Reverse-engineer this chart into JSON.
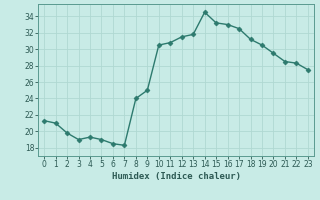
{
  "x": [
    0,
    1,
    2,
    3,
    4,
    5,
    6,
    7,
    8,
    9,
    10,
    11,
    12,
    13,
    14,
    15,
    16,
    17,
    18,
    19,
    20,
    21,
    22,
    23
  ],
  "y": [
    21.3,
    21.0,
    19.8,
    19.0,
    19.3,
    19.0,
    18.5,
    18.3,
    24.0,
    25.0,
    30.5,
    30.8,
    31.5,
    31.8,
    34.5,
    33.2,
    33.0,
    32.5,
    31.2,
    30.5,
    29.5,
    28.5,
    28.3,
    27.5
  ],
  "line_color": "#2d7a6e",
  "marker": "D",
  "markersize": 2.5,
  "linewidth": 1.0,
  "bg_color": "#c8ebe6",
  "grid_color": "#b0d8d2",
  "xlabel": "Humidex (Indice chaleur)",
  "ylim": [
    17,
    35.5
  ],
  "yticks": [
    18,
    20,
    22,
    24,
    26,
    28,
    30,
    32,
    34
  ],
  "xlim": [
    -0.5,
    23.5
  ],
  "xticks": [
    0,
    1,
    2,
    3,
    4,
    5,
    6,
    7,
    8,
    9,
    10,
    11,
    12,
    13,
    14,
    15,
    16,
    17,
    18,
    19,
    20,
    21,
    22,
    23
  ],
  "tick_color": "#2d5a54",
  "spine_color": "#5a9a90"
}
